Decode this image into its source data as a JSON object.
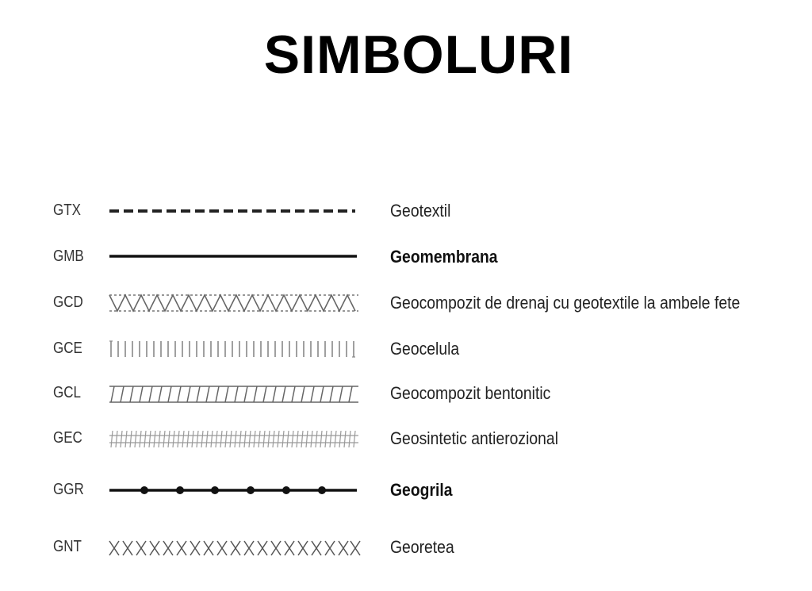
{
  "title": "SIMBOLURI",
  "rows": [
    {
      "code": "GTX",
      "description": "Geotextil",
      "symbol": "dashed-line"
    },
    {
      "code": "GMB",
      "description": "Geomembrana",
      "symbol": "solid-line"
    },
    {
      "code": "GCD",
      "description": "Geocompozit de drenaj cu geotextile la ambele fete",
      "symbol": "zigzag-between-dotted-lines"
    },
    {
      "code": "GCE",
      "description": "Geocelula",
      "symbol": "vertical-bars"
    },
    {
      "code": "GCL",
      "description": "Geocompozit bentonitic",
      "symbol": "slanted-z-pattern"
    },
    {
      "code": "GEC",
      "description": "Geosintetic antierozional",
      "symbol": "hash-pattern"
    },
    {
      "code": "GGR",
      "description": "Geogrila",
      "symbol": "line-with-nodes"
    },
    {
      "code": "GNT",
      "description": "Georetea",
      "symbol": "x-pattern"
    }
  ],
  "colors": {
    "background": "#ffffff",
    "ink": "#111111",
    "pattern": "#777777"
  }
}
